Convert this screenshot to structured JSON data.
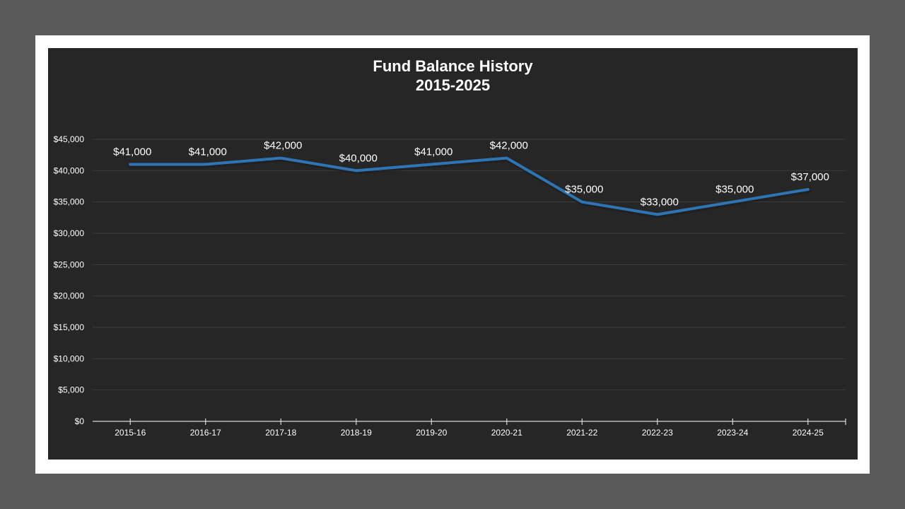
{
  "chart_data": {
    "type": "line",
    "title": "Fund Balance History",
    "subtitle": "2015-2025",
    "xlabel": "",
    "ylabel": "",
    "categories": [
      "2015-16",
      "2016-17",
      "2017-18",
      "2018-19",
      "2019-20",
      "2020-21",
      "2021-22",
      "2022-23",
      "2023-24",
      "2024-25"
    ],
    "series": [
      {
        "name": "Fund Balance",
        "values": [
          41000,
          41000,
          42000,
          40000,
          41000,
          42000,
          35000,
          33000,
          35000,
          37000
        ],
        "color": "#2e75b6"
      }
    ],
    "data_labels": [
      "$41,000",
      "$41,000",
      "$42,000",
      "$40,000",
      "$41,000",
      "$42,000",
      "$35,000",
      "$33,000",
      "$35,000",
      "$37,000"
    ],
    "y_ticks": [
      "$0",
      "$5,000",
      "$10,000",
      "$15,000",
      "$20,000",
      "$25,000",
      "$30,000",
      "$35,000",
      "$40,000",
      "$45,000"
    ],
    "ylim": [
      0,
      45000
    ],
    "grid": true,
    "legend": "none"
  },
  "colors": {
    "background": "#262626",
    "frame": "#ffffff",
    "outer": "#5a5a5a",
    "line": "#2e75b6",
    "grid": "#3d3d3d",
    "text": "#ffffff"
  }
}
